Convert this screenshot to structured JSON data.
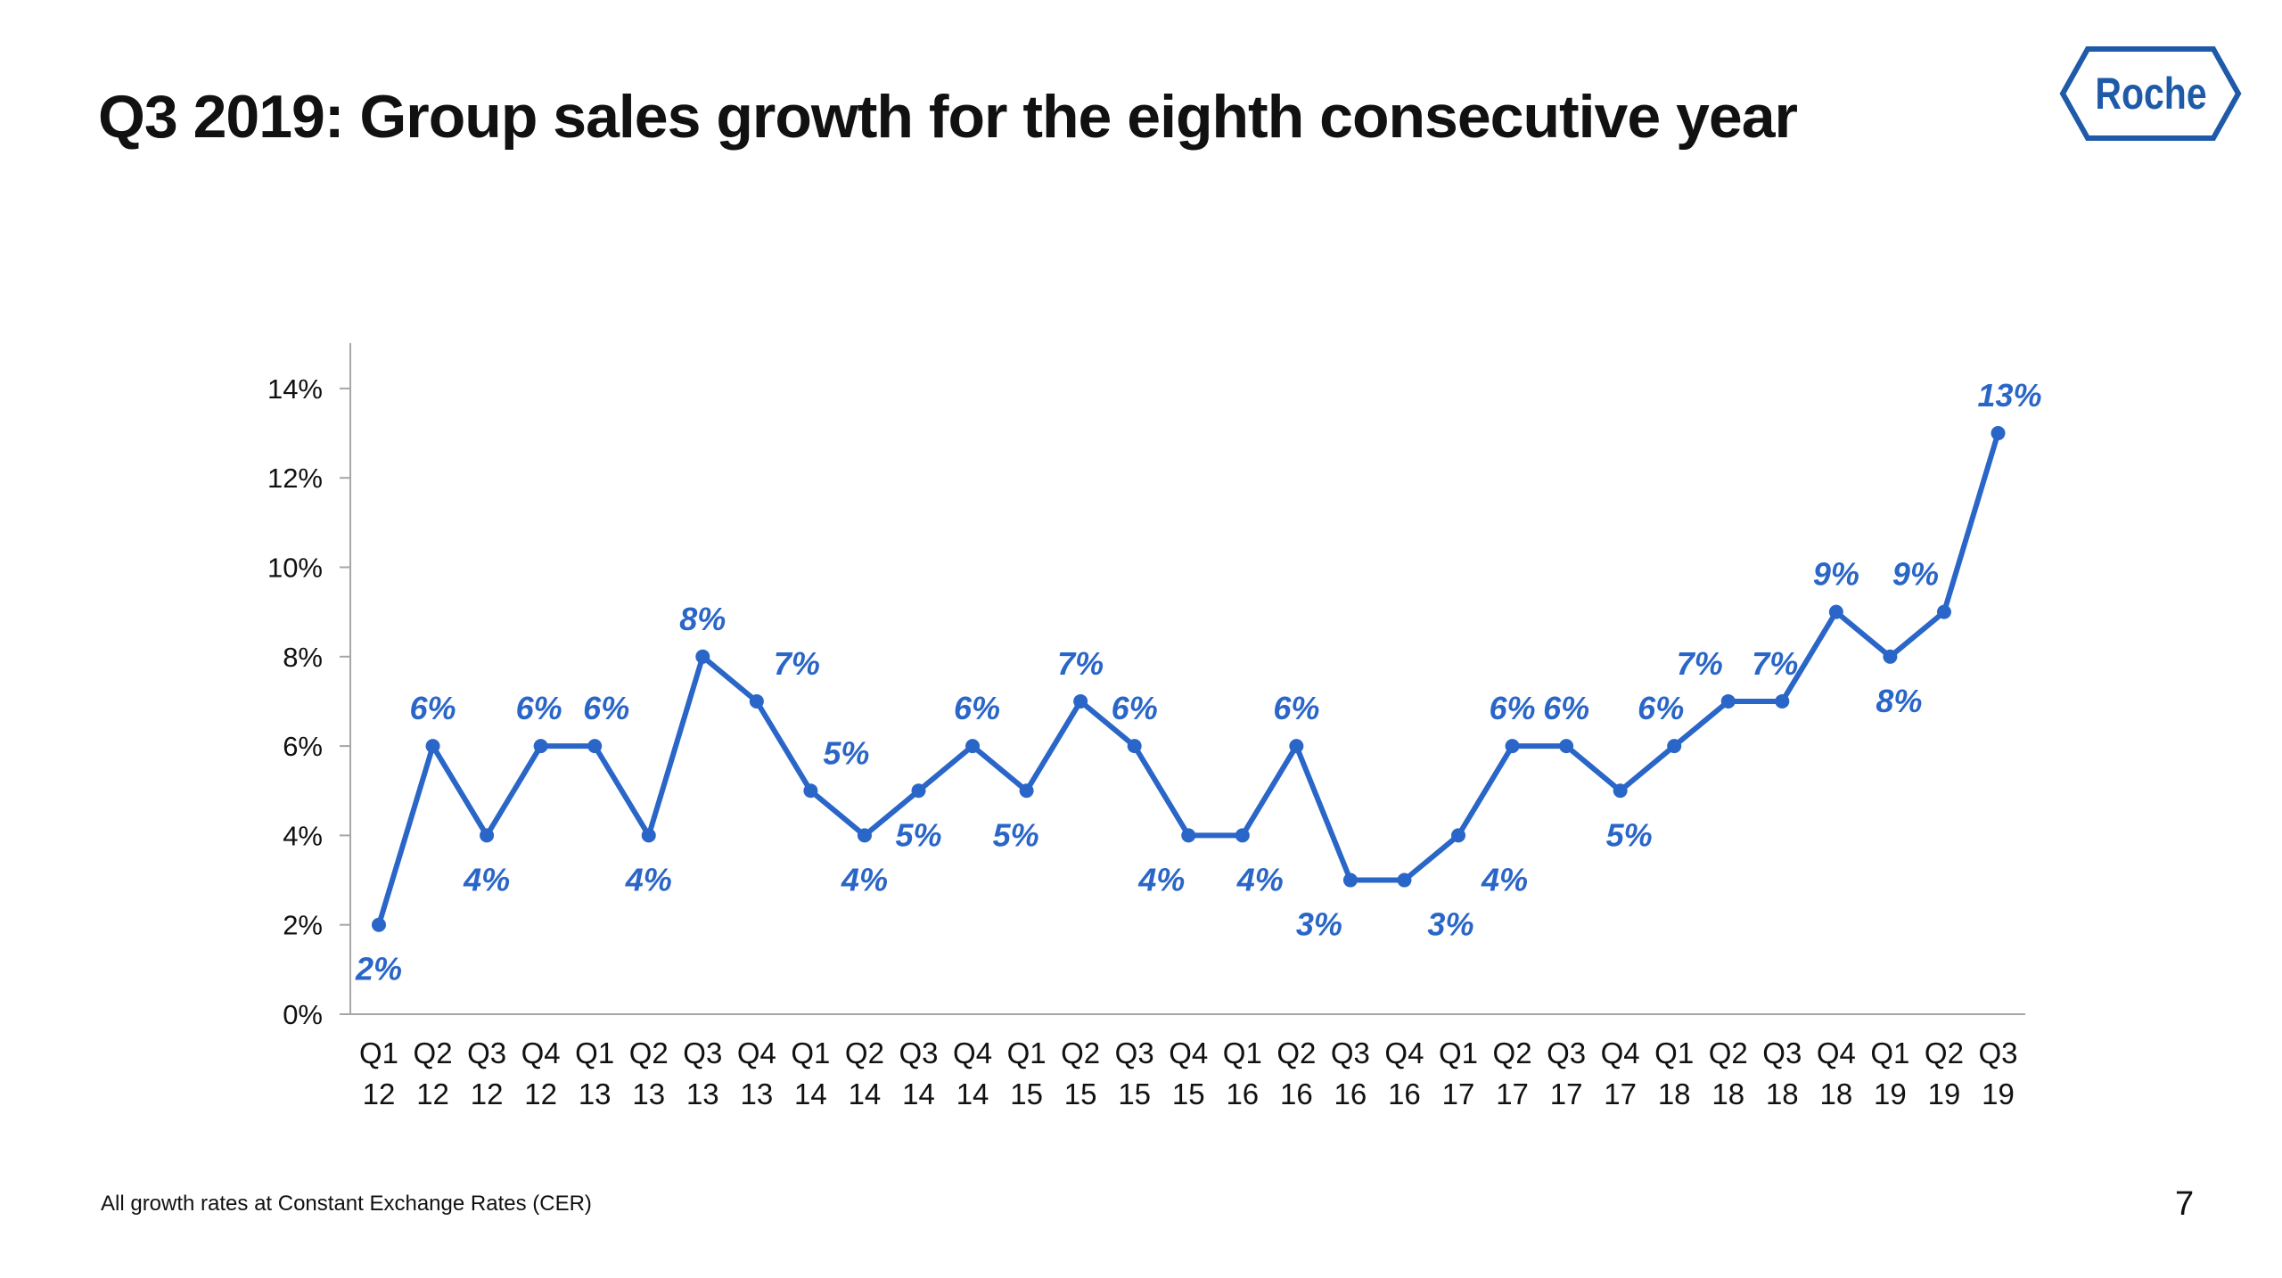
{
  "slide": {
    "title": "Q3 2019: Group sales growth for the eighth consecutive year",
    "footnote": "All growth rates at Constant Exchange Rates (CER)",
    "page_number": "7",
    "logo_text": "Roche"
  },
  "colors": {
    "series": "#2a66c8",
    "logo": "#1f5aa9",
    "axis": "#a6a6a6",
    "text": "#111111"
  },
  "chart_data": {
    "type": "line",
    "title": "",
    "xlabel": "",
    "ylabel": "",
    "ylim": [
      0,
      0.15
    ],
    "y_ticks": [
      "0%",
      "2%",
      "4%",
      "6%",
      "8%",
      "10%",
      "12%",
      "14%"
    ],
    "y_tick_values": [
      0,
      0.02,
      0.04,
      0.06,
      0.08,
      0.1,
      0.12,
      0.14
    ],
    "grid": false,
    "legend": "none",
    "categories": [
      [
        "Q1",
        "12"
      ],
      [
        "Q2",
        "12"
      ],
      [
        "Q3",
        "12"
      ],
      [
        "Q4",
        "12"
      ],
      [
        "Q1",
        "13"
      ],
      [
        "Q2",
        "13"
      ],
      [
        "Q3",
        "13"
      ],
      [
        "Q4",
        "13"
      ],
      [
        "Q1",
        "14"
      ],
      [
        "Q2",
        "14"
      ],
      [
        "Q3",
        "14"
      ],
      [
        "Q4",
        "14"
      ],
      [
        "Q1",
        "15"
      ],
      [
        "Q2",
        "15"
      ],
      [
        "Q3",
        "15"
      ],
      [
        "Q4",
        "15"
      ],
      [
        "Q1",
        "16"
      ],
      [
        "Q2",
        "16"
      ],
      [
        "Q3",
        "16"
      ],
      [
        "Q4",
        "16"
      ],
      [
        "Q1",
        "17"
      ],
      [
        "Q2",
        "17"
      ],
      [
        "Q3",
        "17"
      ],
      [
        "Q4",
        "17"
      ],
      [
        "Q1",
        "18"
      ],
      [
        "Q2",
        "18"
      ],
      [
        "Q3",
        "18"
      ],
      [
        "Q4",
        "18"
      ],
      [
        "Q1",
        "19"
      ],
      [
        "Q2",
        "19"
      ],
      [
        "Q3",
        "19"
      ]
    ],
    "series": [
      {
        "values": [
          0.02,
          0.06,
          0.04,
          0.06,
          0.06,
          0.04,
          0.08,
          0.07,
          0.05,
          0.04,
          0.05,
          0.06,
          0.05,
          0.07,
          0.06,
          0.04,
          0.04,
          0.06,
          0.03,
          0.03,
          0.04,
          0.06,
          0.06,
          0.05,
          0.06,
          0.07,
          0.07,
          0.09,
          0.08,
          0.09,
          0.13
        ],
        "labels": [
          "2%",
          "6%",
          "4%",
          "6%",
          "6%",
          "4%",
          "8%",
          "7%",
          "5%",
          "4%",
          "5%",
          "6%",
          "5%",
          "7%",
          "6%",
          "4%",
          "4%",
          "6%",
          "3%",
          "3%",
          "4%",
          "6%",
          "6%",
          "5%",
          "6%",
          "7%",
          "7%",
          "9%",
          "8%",
          "9%",
          "13%"
        ]
      }
    ]
  }
}
